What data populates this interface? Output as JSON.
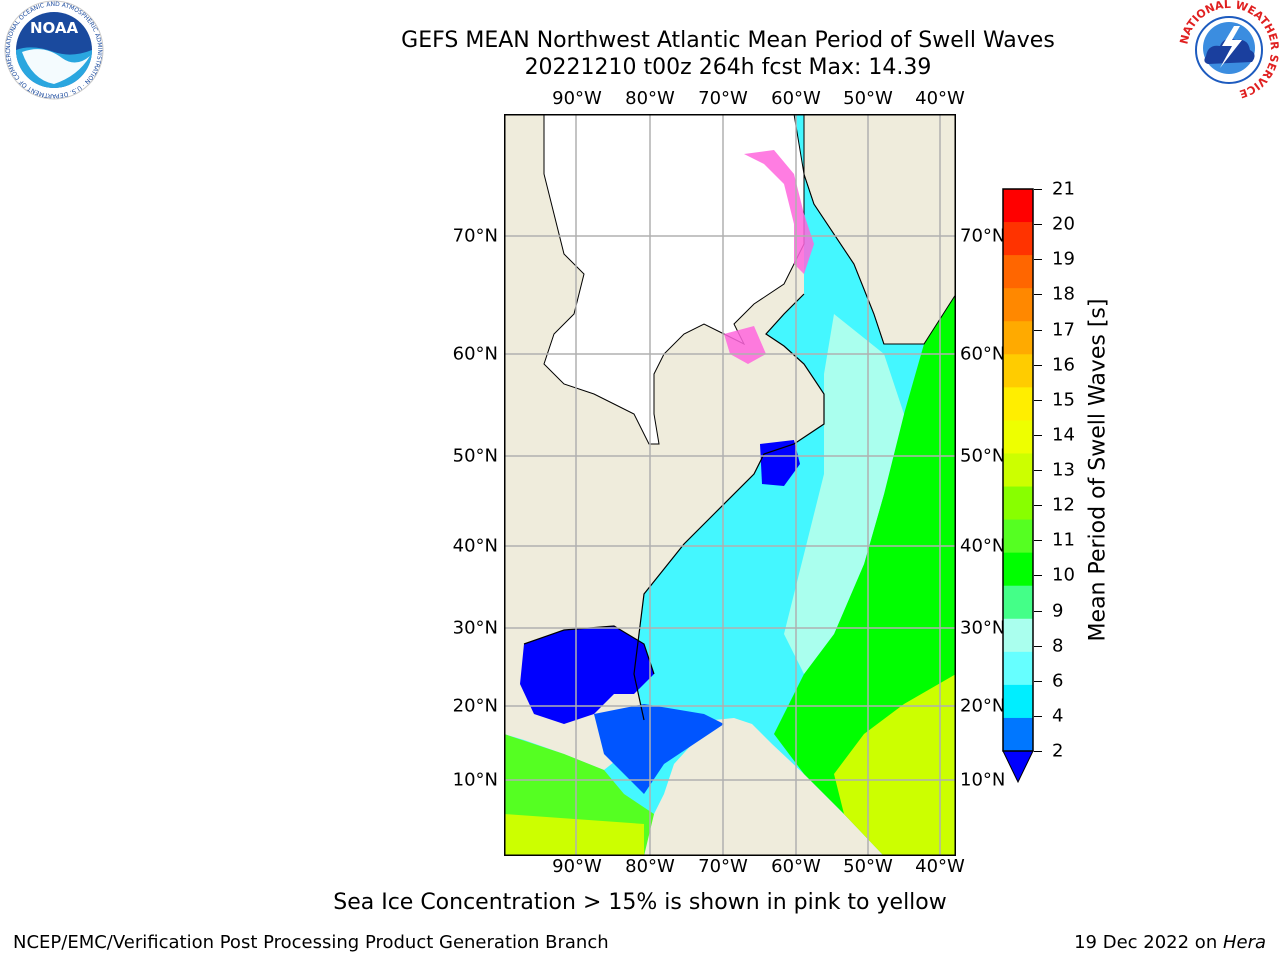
{
  "header": {
    "title_line1": "GEFS MEAN Northwest Atlantic Mean Period of Swell Waves",
    "title_line2": "20221210 t00z 264h fcst   Max: 14.39"
  },
  "logos": {
    "left": {
      "text": "NOAA",
      "ring_text": "NATIONAL OCEANIC AND ATMOSPHERIC ADMINISTRATION · U.S. DEPARTMENT OF COMMERCE"
    },
    "right": {
      "ring_text": "NATIONAL WEATHER SERVICE"
    }
  },
  "map": {
    "lon_labels": [
      "90°W",
      "80°W",
      "70°W",
      "60°W",
      "50°W",
      "40°W"
    ],
    "lat_labels": [
      "70°N",
      "60°N",
      "50°N",
      "40°N",
      "30°N",
      "20°N",
      "10°N"
    ],
    "colors": {
      "land": "#efecdc",
      "ice_land": "#ffffff",
      "ocean_low": "#0000ff",
      "ocean_mid": "#44f7ff",
      "ocean_high": "#00ff00"
    }
  },
  "colorbar": {
    "label": "Mean Period of Swell Waves [s]",
    "ticks": [
      "21",
      "20",
      "19",
      "18",
      "17",
      "16",
      "15",
      "14",
      "13",
      "12",
      "11",
      "10",
      "9",
      "8",
      "6",
      "4",
      "2"
    ],
    "colors": [
      "#ff0000",
      "#ff3300",
      "#ff6600",
      "#ff8800",
      "#ffaa00",
      "#ffcc00",
      "#ffee00",
      "#eeff00",
      "#ccff00",
      "#88ff00",
      "#55ff22",
      "#00ff00",
      "#44ff88",
      "#aaffee",
      "#66ffff",
      "#00eeff",
      "#0077ff"
    ],
    "extend_color": "#0000ff"
  },
  "caption": "Sea Ice Concentration > 15% is shown in pink to yellow",
  "footer": {
    "left": "NCEP/EMC/Verification Post Processing Product Generation Branch",
    "right_prefix": "19 Dec 2022 on ",
    "right_host": "Hera"
  }
}
